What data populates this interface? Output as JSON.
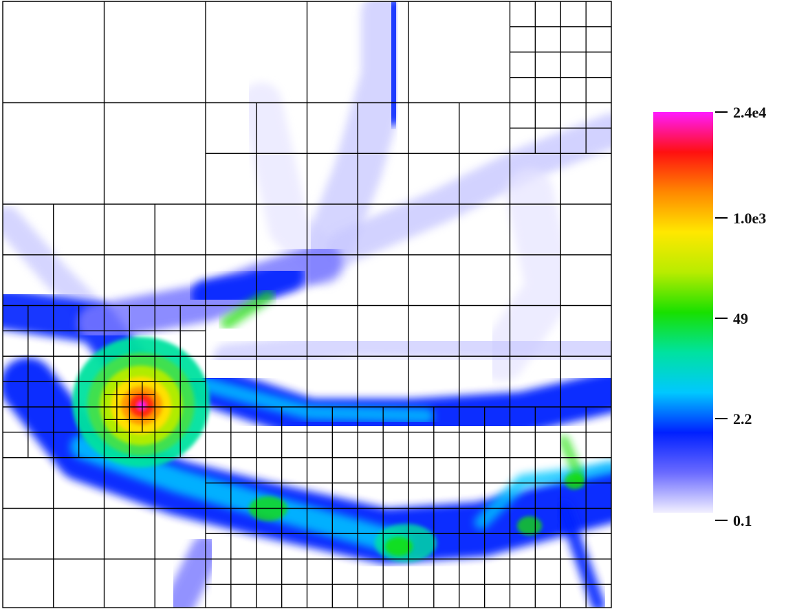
{
  "chart_data": {
    "type": "heatmap",
    "title": "",
    "xlabel": "",
    "ylabel": "",
    "grid": "adaptive mesh refinement cells (levels 1–3)",
    "colorbar": {
      "placement": "right",
      "scale": "log",
      "range": [
        0.1,
        24000
      ],
      "ticks": [
        {
          "label": "2.4e4",
          "value": 24000
        },
        {
          "label": "1.0e3",
          "value": 1000
        },
        {
          "label": "49",
          "value": 49
        },
        {
          "label": "2.2",
          "value": 2.2
        },
        {
          "label": "0.1",
          "value": 0.1
        }
      ],
      "colors": [
        "#f2f0ff",
        "#6a6aff",
        "#0020ff",
        "#00c8ff",
        "#00e2a0",
        "#18e000",
        "#b8ec00",
        "#ffe800",
        "#ff8800",
        "#ff1010",
        "#ff1aff"
      ]
    }
  }
}
